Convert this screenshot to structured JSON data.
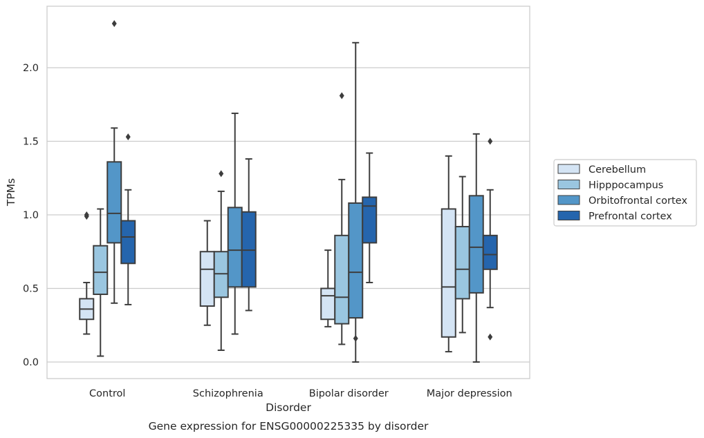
{
  "caption": "Gene expression for ENSG00000225335 by disorder",
  "chart_data": {
    "type": "box",
    "xlabel": "Disorder",
    "ylabel": "TPMs",
    "ylim": [
      -0.11,
      2.43
    ],
    "yticks": [
      0.0,
      0.5,
      1.0,
      1.5,
      2.0
    ],
    "ytick_labels": [
      "0.0",
      "0.5",
      "1.0",
      "1.5",
      "2.0"
    ],
    "grid": "horizontal",
    "legend_position": "right",
    "categories": [
      "Control",
      "Schizophrenia",
      "Bipolar disorder",
      "Major depression"
    ],
    "series": [
      {
        "name": "Cerebellum",
        "color": "#d4e4f4",
        "boxes": [
          {
            "whislo": 0.19,
            "q1": 0.29,
            "med": 0.36,
            "q3": 0.43,
            "whishi": 0.54,
            "fliers": [
              0.99,
              1.0
            ]
          },
          {
            "whislo": 0.25,
            "q1": 0.38,
            "med": 0.63,
            "q3": 0.75,
            "whishi": 0.96,
            "fliers": []
          },
          {
            "whislo": 0.24,
            "q1": 0.29,
            "med": 0.45,
            "q3": 0.5,
            "whishi": 0.76,
            "fliers": []
          },
          {
            "whislo": 0.07,
            "q1": 0.17,
            "med": 0.51,
            "q3": 1.04,
            "whishi": 1.4,
            "fliers": []
          }
        ]
      },
      {
        "name": "Hipppocampus",
        "color": "#9ac6e0",
        "boxes": [
          {
            "whislo": 0.04,
            "q1": 0.46,
            "med": 0.61,
            "q3": 0.79,
            "whishi": 1.04,
            "fliers": []
          },
          {
            "whislo": 0.08,
            "q1": 0.44,
            "med": 0.6,
            "q3": 0.75,
            "whishi": 1.16,
            "fliers": [
              1.28
            ]
          },
          {
            "whislo": 0.12,
            "q1": 0.26,
            "med": 0.44,
            "q3": 0.86,
            "whishi": 1.24,
            "fliers": [
              1.81
            ]
          },
          {
            "whislo": 0.2,
            "q1": 0.43,
            "med": 0.63,
            "q3": 0.92,
            "whishi": 1.26,
            "fliers": []
          }
        ]
      },
      {
        "name": "Orbitofrontal cortex",
        "color": "#5396c8",
        "boxes": [
          {
            "whislo": 0.4,
            "q1": 0.81,
            "med": 1.01,
            "q3": 1.36,
            "whishi": 1.59,
            "fliers": [
              2.3
            ]
          },
          {
            "whislo": 0.19,
            "q1": 0.51,
            "med": 0.76,
            "q3": 1.05,
            "whishi": 1.69,
            "fliers": []
          },
          {
            "whislo": 0.0,
            "q1": 0.3,
            "med": 0.61,
            "q3": 1.08,
            "whishi": 2.17,
            "fliers": [
              0.16
            ]
          },
          {
            "whislo": 0.0,
            "q1": 0.47,
            "med": 0.78,
            "q3": 1.13,
            "whishi": 1.55,
            "fliers": []
          }
        ]
      },
      {
        "name": "Prefrontal cortex",
        "color": "#2565ad",
        "boxes": [
          {
            "whislo": 0.39,
            "q1": 0.67,
            "med": 0.85,
            "q3": 0.96,
            "whishi": 1.17,
            "fliers": [
              1.53
            ]
          },
          {
            "whislo": 0.35,
            "q1": 0.51,
            "med": 0.76,
            "q3": 1.02,
            "whishi": 1.38,
            "fliers": []
          },
          {
            "whislo": 0.54,
            "q1": 0.81,
            "med": 1.06,
            "q3": 1.12,
            "whishi": 1.42,
            "fliers": []
          },
          {
            "whislo": 0.37,
            "q1": 0.63,
            "med": 0.73,
            "q3": 0.86,
            "whishi": 1.17,
            "fliers": [
              0.17,
              1.5
            ]
          }
        ]
      }
    ]
  }
}
